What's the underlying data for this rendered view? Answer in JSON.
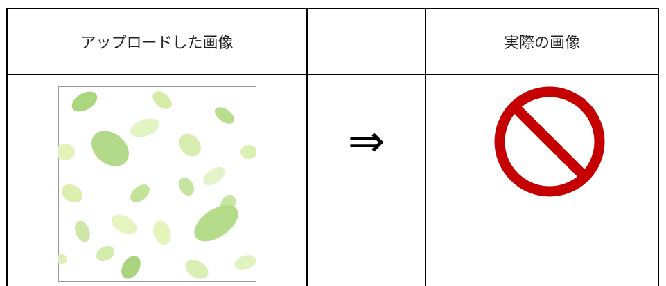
{
  "table": {
    "header": {
      "uploaded": "アップロードした画像",
      "actual": "実際の画像"
    },
    "arrow": "⇒"
  }
}
